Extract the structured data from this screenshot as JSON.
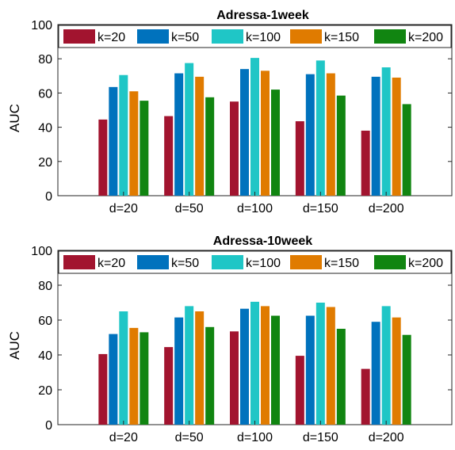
{
  "chart_data": [
    {
      "type": "bar",
      "title": "Adressa-1week",
      "ylabel": "AUC",
      "xlabel": "",
      "ylim": [
        0,
        100
      ],
      "yticks": [
        0,
        20,
        40,
        60,
        80,
        100
      ],
      "categories": [
        "d=20",
        "d=50",
        "d=100",
        "d=150",
        "d=200"
      ],
      "series": [
        {
          "name": "k=20",
          "color": "#a2142f",
          "values": [
            44.5,
            46.5,
            55.0,
            43.5,
            38.0
          ]
        },
        {
          "name": "k=50",
          "color": "#0072bd",
          "values": [
            63.5,
            71.5,
            74.0,
            71.0,
            69.5
          ]
        },
        {
          "name": "k=100",
          "color": "#1fc6c6",
          "values": [
            70.5,
            77.5,
            80.5,
            79.0,
            75.0
          ]
        },
        {
          "name": "k=150",
          "color": "#e07b00",
          "values": [
            61.0,
            69.5,
            73.0,
            71.5,
            69.0
          ]
        },
        {
          "name": "k=200",
          "color": "#118511",
          "values": [
            55.5,
            57.5,
            62.0,
            58.5,
            53.5
          ]
        }
      ],
      "legend": "top"
    },
    {
      "type": "bar",
      "title": "Adressa-10week",
      "ylabel": "AUC",
      "xlabel": "",
      "ylim": [
        0,
        100
      ],
      "yticks": [
        0,
        20,
        40,
        60,
        80,
        100
      ],
      "categories": [
        "d=20",
        "d=50",
        "d=100",
        "d=150",
        "d=200"
      ],
      "series": [
        {
          "name": "k=20",
          "color": "#a2142f",
          "values": [
            40.5,
            44.5,
            53.5,
            39.5,
            32.0
          ]
        },
        {
          "name": "k=50",
          "color": "#0072bd",
          "values": [
            52.0,
            61.5,
            66.5,
            62.5,
            59.0
          ]
        },
        {
          "name": "k=100",
          "color": "#1fc6c6",
          "values": [
            65.0,
            68.0,
            70.5,
            70.0,
            68.0
          ]
        },
        {
          "name": "k=150",
          "color": "#e07b00",
          "values": [
            55.5,
            65.0,
            68.0,
            67.5,
            61.5
          ]
        },
        {
          "name": "k=200",
          "color": "#118511",
          "values": [
            53.0,
            56.0,
            62.5,
            55.0,
            51.5
          ]
        }
      ],
      "legend": "top"
    }
  ]
}
